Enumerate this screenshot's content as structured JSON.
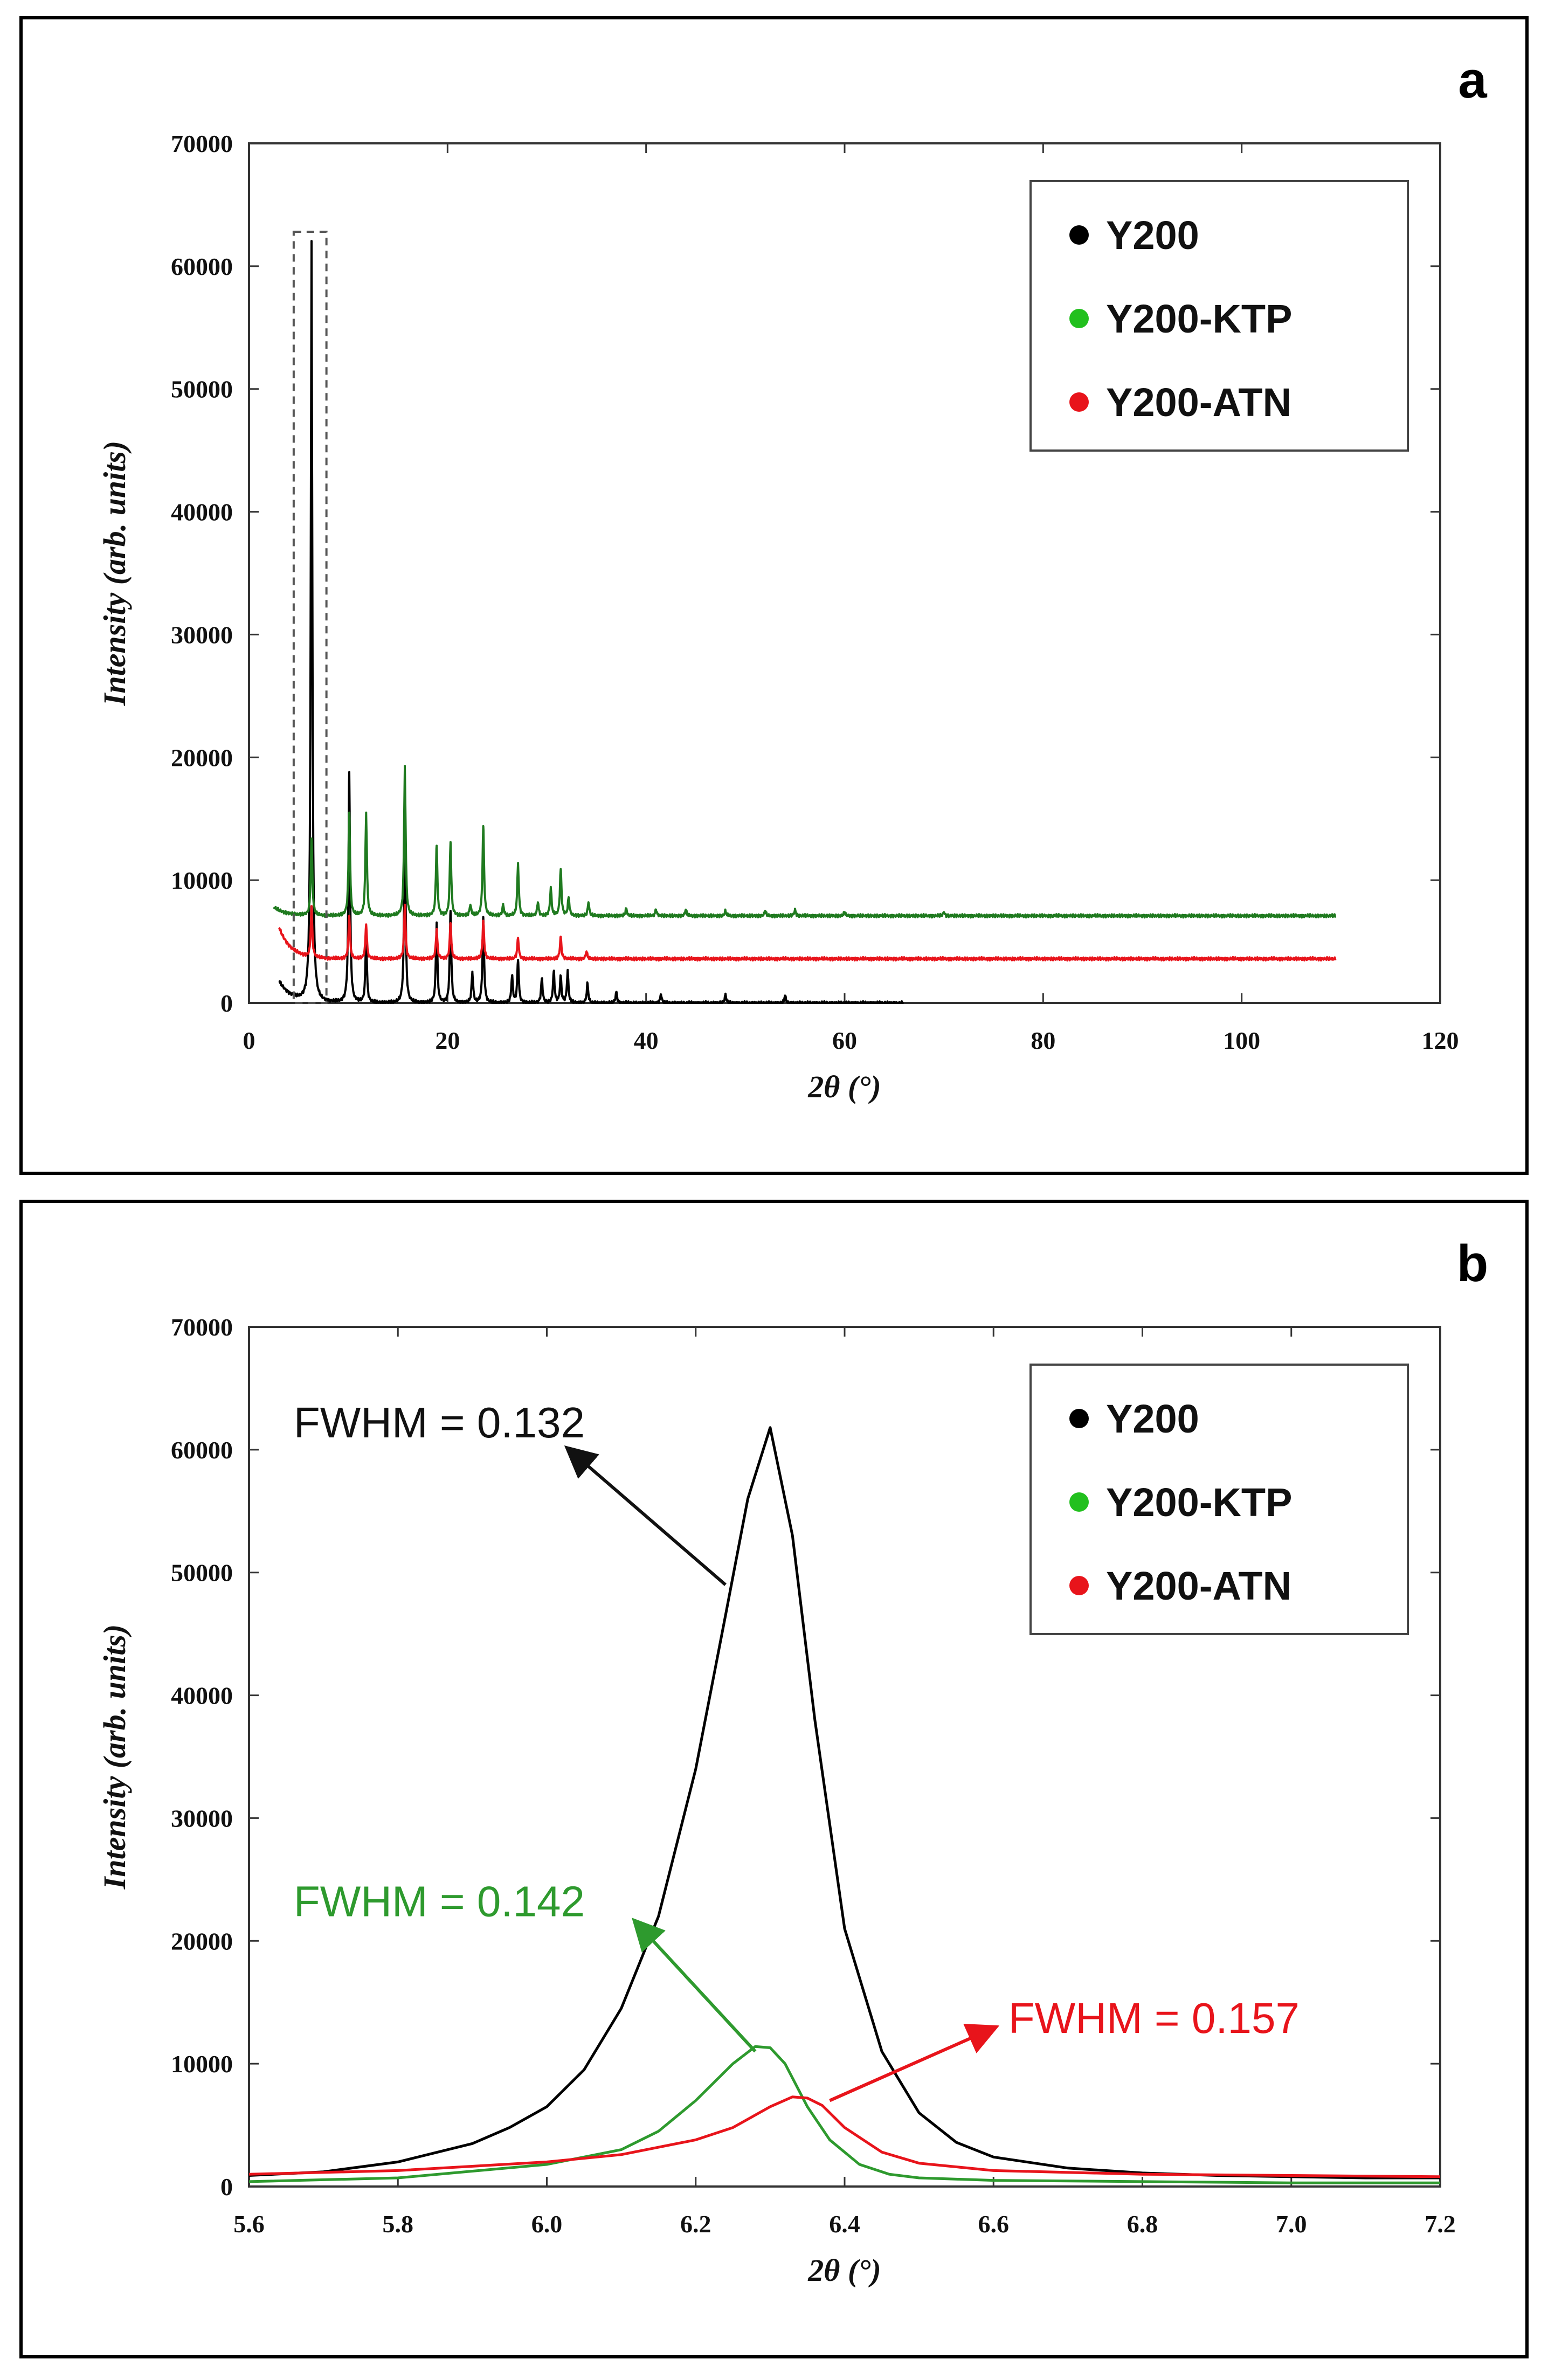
{
  "chart_data": [
    {
      "panel_label": "a",
      "type": "line",
      "xlabel": "2θ (°)",
      "ylabel": "Intensity (arb. units)",
      "xlim": [
        0,
        120
      ],
      "ylim": [
        0,
        70000
      ],
      "xticks": [
        "0",
        "20",
        "40",
        "60",
        "80",
        "100",
        "120"
      ],
      "yticks": [
        "0",
        "10000",
        "20000",
        "30000",
        "40000",
        "50000",
        "60000",
        "70000"
      ],
      "legend": {
        "position": "top-right",
        "entries": [
          "Y200",
          "Y200-KTP",
          "Y200-ATN"
        ]
      },
      "highlight_box": {
        "x_range": [
          4.5,
          7.8
        ],
        "y_range": [
          0,
          62800
        ],
        "style": "dashed"
      },
      "series": [
        {
          "name": "Y200",
          "color": "#000000",
          "baseline": 0,
          "start_x": 3,
          "end_x": 66,
          "start_value": 1800,
          "peaks": [
            [
              6.3,
              61800
            ],
            [
              10.1,
              18800
            ],
            [
              11.8,
              5200
            ],
            [
              15.7,
              14800
            ],
            [
              18.9,
              6500
            ],
            [
              20.3,
              7500
            ],
            [
              22.5,
              2500
            ],
            [
              23.6,
              7000
            ],
            [
              26.5,
              2200
            ],
            [
              27.1,
              3500
            ],
            [
              29.5,
              2000
            ],
            [
              30.7,
              2600
            ],
            [
              31.4,
              2200
            ],
            [
              32.1,
              2600
            ],
            [
              34.1,
              1600
            ],
            [
              37.0,
              900
            ],
            [
              41.5,
              700
            ],
            [
              48.0,
              700
            ],
            [
              54.0,
              600
            ]
          ]
        },
        {
          "name": "Y200-KTP",
          "color": "#1f7a1f",
          "baseline": 7100,
          "start_x": 2.5,
          "end_x": 109.5,
          "start_value": 7800,
          "peaks": [
            [
              6.3,
              13400
            ],
            [
              10.1,
              15500
            ],
            [
              11.8,
              15500
            ],
            [
              15.7,
              19300
            ],
            [
              18.9,
              12800
            ],
            [
              20.3,
              13100
            ],
            [
              22.3,
              8000
            ],
            [
              23.6,
              14400
            ],
            [
              25.6,
              8000
            ],
            [
              27.1,
              11400
            ],
            [
              29.1,
              8200
            ],
            [
              30.4,
              9400
            ],
            [
              31.4,
              10900
            ],
            [
              32.2,
              8600
            ],
            [
              34.2,
              8200
            ],
            [
              38.0,
              7700
            ],
            [
              41.0,
              7600
            ],
            [
              44.0,
              7600
            ],
            [
              48.0,
              7500
            ],
            [
              52.0,
              7500
            ],
            [
              55.0,
              7600
            ],
            [
              60.0,
              7400
            ],
            [
              70.0,
              7400
            ]
          ]
        },
        {
          "name": "Y200-ATN",
          "color": "#e8141b",
          "baseline": 3600,
          "start_x": 3,
          "end_x": 109.5,
          "start_value": 6200,
          "peaks": [
            [
              6.3,
              7600
            ],
            [
              10.1,
              7100
            ],
            [
              11.8,
              6400
            ],
            [
              15.7,
              8000
            ],
            [
              18.9,
              6000
            ],
            [
              20.3,
              6500
            ],
            [
              23.6,
              6700
            ],
            [
              27.1,
              5300
            ],
            [
              31.4,
              5400
            ],
            [
              34.0,
              4200
            ]
          ]
        }
      ]
    },
    {
      "panel_label": "b",
      "type": "line",
      "xlabel": "2θ (°)",
      "ylabel": "Intensity (arb. units)",
      "xlim": [
        5.6,
        7.2
      ],
      "ylim": [
        0,
        70000
      ],
      "xticks": [
        "5.6",
        "5.8",
        "6.0",
        "6.2",
        "6.4",
        "6.6",
        "6.8",
        "7.0",
        "7.2"
      ],
      "yticks": [
        "0",
        "10000",
        "20000",
        "30000",
        "40000",
        "50000",
        "60000",
        "70000"
      ],
      "legend": {
        "position": "top-right",
        "entries": [
          "Y200",
          "Y200-KTP",
          "Y200-ATN"
        ]
      },
      "series": [
        {
          "name": "Y200",
          "color": "#000000",
          "x": [
            5.6,
            5.7,
            5.8,
            5.9,
            5.95,
            6.0,
            6.05,
            6.1,
            6.15,
            6.2,
            6.24,
            6.27,
            6.3,
            6.33,
            6.36,
            6.4,
            6.45,
            6.5,
            6.55,
            6.6,
            6.7,
            6.8,
            6.9,
            7.0,
            7.1,
            7.2
          ],
          "y": [
            900,
            1200,
            2000,
            3500,
            4800,
            6500,
            9500,
            14500,
            22000,
            34000,
            46500,
            56000,
            61800,
            53000,
            38000,
            21000,
            11000,
            6000,
            3600,
            2400,
            1500,
            1100,
            900,
            800,
            700,
            700
          ]
        },
        {
          "name": "Y200-KTP",
          "color": "#2e9a2e",
          "x": [
            5.6,
            5.8,
            6.0,
            6.1,
            6.15,
            6.2,
            6.25,
            6.28,
            6.3,
            6.32,
            6.35,
            6.38,
            6.42,
            6.46,
            6.5,
            6.6,
            6.8,
            7.0,
            7.2
          ],
          "y": [
            400,
            700,
            1800,
            3000,
            4500,
            7000,
            10000,
            11400,
            11300,
            10000,
            6500,
            3800,
            1800,
            1000,
            700,
            500,
            400,
            300,
            300
          ]
        },
        {
          "name": "Y200-ATN",
          "color": "#e8141b",
          "x": [
            5.6,
            5.8,
            6.0,
            6.1,
            6.2,
            6.25,
            6.3,
            6.33,
            6.35,
            6.37,
            6.4,
            6.45,
            6.5,
            6.6,
            6.8,
            7.0,
            7.2
          ],
          "y": [
            1000,
            1300,
            2000,
            2600,
            3800,
            4800,
            6500,
            7300,
            7200,
            6600,
            4800,
            2800,
            1900,
            1300,
            1000,
            900,
            800
          ]
        }
      ],
      "annotations": [
        {
          "text": "FWHM = 0.132",
          "color": "#111111",
          "anchor": [
            5.66,
            61000
          ],
          "arrow_from": [
            6.24,
            49000
          ],
          "arrow_to": [
            6.03,
            60000
          ]
        },
        {
          "text": "FWHM = 0.142",
          "color": "#2e9a2e",
          "anchor": [
            5.66,
            22000
          ],
          "arrow_from": [
            6.28,
            11000
          ],
          "arrow_to": [
            6.12,
            21500
          ]
        },
        {
          "text": "FWHM = 0.157",
          "color": "#e8141b",
          "anchor": [
            6.62,
            12500
          ],
          "arrow_from": [
            6.38,
            7000
          ],
          "arrow_to": [
            6.6,
            12900
          ]
        }
      ]
    }
  ]
}
